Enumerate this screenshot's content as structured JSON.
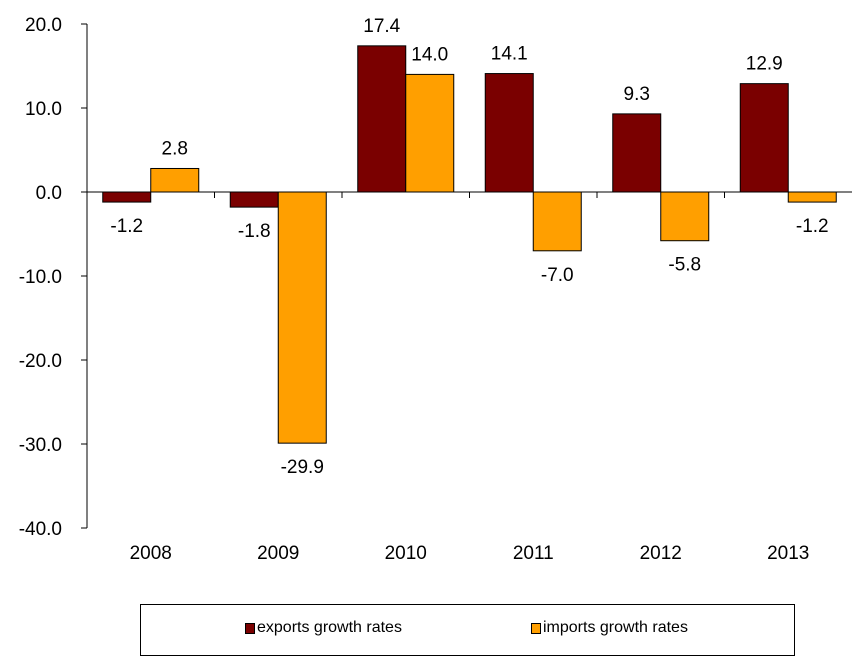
{
  "chart_data": {
    "type": "bar",
    "categories": [
      "2008",
      "2009",
      "2010",
      "2011",
      "2012",
      "2013"
    ],
    "series": [
      {
        "name": "exports growth rates",
        "values": [
          -1.2,
          -1.8,
          17.4,
          14.1,
          9.3,
          12.9
        ],
        "color": "#7a0000",
        "labels": [
          "-1.2",
          "-1.8",
          "17.4",
          "14.1",
          "9.3",
          "12.9"
        ]
      },
      {
        "name": "imports growth rates",
        "values": [
          2.8,
          -29.9,
          14.0,
          -7.0,
          -5.8,
          -1.2
        ],
        "color": "#ff9f00",
        "labels": [
          "2.8",
          "-29.9",
          "14.0",
          "-7.0",
          "-5.8",
          "-1.2"
        ]
      }
    ],
    "ylim": [
      -40,
      20
    ],
    "yticks": [
      20,
      10,
      0,
      -10,
      -20,
      -30,
      -40
    ],
    "ytick_labels": [
      "20.0",
      "10.0",
      "0.0",
      "-10.0",
      "-20.0",
      "-30.0",
      "-40.0"
    ],
    "grid": false,
    "legend_position": "bottom",
    "title": "",
    "xlabel": "",
    "ylabel": ""
  }
}
